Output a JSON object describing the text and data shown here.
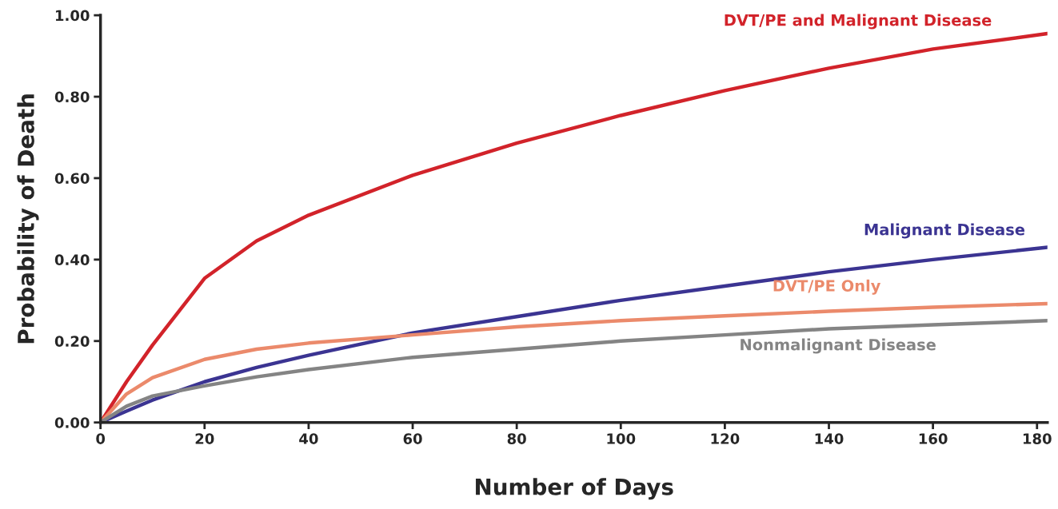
{
  "chart_data": {
    "type": "line",
    "xlabel": "Number of Days",
    "ylabel": "Probability of Death",
    "x": [
      0,
      5,
      10,
      20,
      30,
      40,
      60,
      80,
      100,
      120,
      140,
      160,
      182
    ],
    "series": [
      {
        "name": "DVT/PE and Malignant Disease",
        "color": "#d2232a",
        "values": [
          0,
          0.1,
          0.19,
          0.354,
          0.446,
          0.509,
          0.607,
          0.686,
          0.754,
          0.815,
          0.87,
          0.917,
          0.955
        ]
      },
      {
        "name": "Malignant Disease",
        "color": "#3b3492",
        "values": [
          0,
          0.028,
          0.055,
          0.1,
          0.135,
          0.165,
          0.22,
          0.26,
          0.3,
          0.335,
          0.37,
          0.4,
          0.43
        ]
      },
      {
        "name": "DVT/PE Only",
        "color": "#eb8a6b",
        "values": [
          0,
          0.07,
          0.11,
          0.155,
          0.18,
          0.195,
          0.215,
          0.235,
          0.25,
          0.262,
          0.273,
          0.283,
          0.292
        ]
      },
      {
        "name": "Nonmalignant Disease",
        "color": "#848484",
        "values": [
          0,
          0.04,
          0.065,
          0.09,
          0.112,
          0.13,
          0.16,
          0.18,
          0.2,
          0.215,
          0.23,
          0.24,
          0.25
        ]
      }
    ],
    "xlim": [
      0,
      182
    ],
    "xticks": [
      0,
      20,
      40,
      60,
      80,
      100,
      120,
      140,
      160,
      180
    ],
    "ylim": [
      0,
      1
    ],
    "yticks": [
      {
        "value": 0,
        "label": "0.00"
      },
      {
        "value": 0.2,
        "label": "0.20"
      },
      {
        "value": 0.4,
        "label": "0.40"
      },
      {
        "value": 0.6,
        "label": "0.60"
      },
      {
        "value": 0.8,
        "label": "0.80"
      },
      {
        "value": 1,
        "label": "1.00"
      }
    ],
    "grid": false,
    "legend": false
  }
}
